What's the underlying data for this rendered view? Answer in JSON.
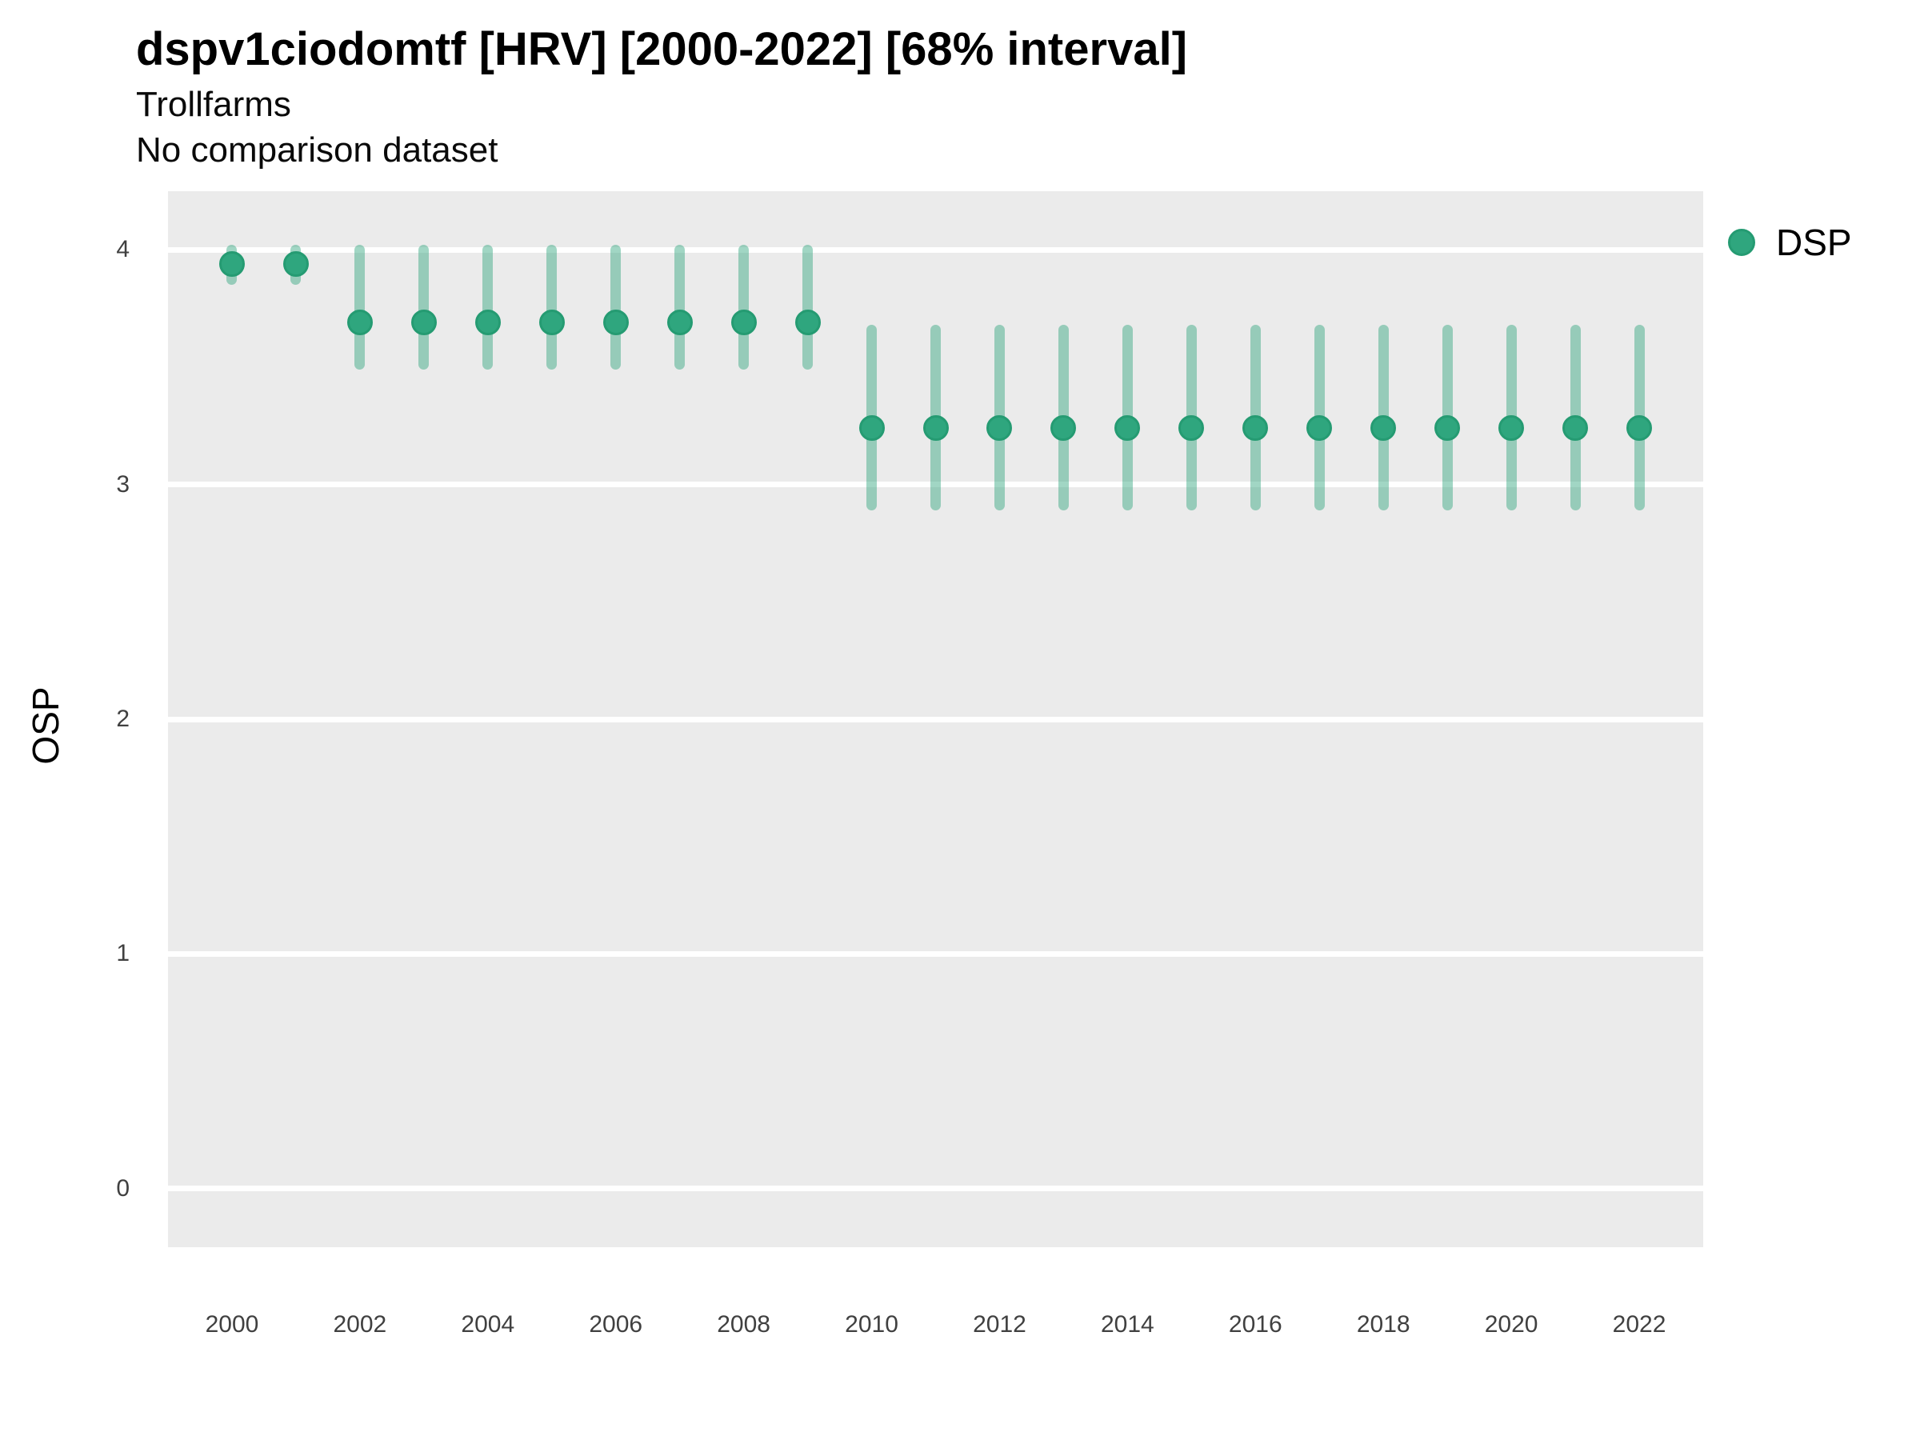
{
  "chart_data": {
    "type": "scatter",
    "title": "dspv1ciodomtf [HRV] [2000-2022] [68% interval]",
    "subtitle": "Trollfarms",
    "subtitle2": "No comparison dataset",
    "xlabel": "",
    "ylabel": "OSP",
    "interval_level": "68%",
    "legend": [
      {
        "label": "DSP",
        "marker": "circle"
      }
    ],
    "legend_position": "right-top",
    "grid": "major-horizontal-only",
    "x_domain": [
      1999,
      2023
    ],
    "y_domain": [
      -0.25,
      4.25
    ],
    "x_ticks": [
      2000,
      2002,
      2004,
      2006,
      2008,
      2010,
      2012,
      2014,
      2016,
      2018,
      2020,
      2022
    ],
    "y_ticks": [
      0,
      1,
      2,
      3,
      4
    ],
    "series": [
      {
        "name": "DSP",
        "points": [
          {
            "year": 2000,
            "y": 3.94,
            "lo": 3.87,
            "hi": 4.0
          },
          {
            "year": 2001,
            "y": 3.94,
            "lo": 3.87,
            "hi": 4.0
          },
          {
            "year": 2002,
            "y": 3.69,
            "lo": 3.51,
            "hi": 4.0
          },
          {
            "year": 2003,
            "y": 3.69,
            "lo": 3.51,
            "hi": 4.0
          },
          {
            "year": 2004,
            "y": 3.69,
            "lo": 3.51,
            "hi": 4.0
          },
          {
            "year": 2005,
            "y": 3.69,
            "lo": 3.51,
            "hi": 4.0
          },
          {
            "year": 2006,
            "y": 3.69,
            "lo": 3.51,
            "hi": 4.0
          },
          {
            "year": 2007,
            "y": 3.69,
            "lo": 3.51,
            "hi": 4.0
          },
          {
            "year": 2008,
            "y": 3.69,
            "lo": 3.51,
            "hi": 4.0
          },
          {
            "year": 2009,
            "y": 3.69,
            "lo": 3.51,
            "hi": 4.0
          },
          {
            "year": 2010,
            "y": 3.24,
            "lo": 2.91,
            "hi": 3.66
          },
          {
            "year": 2011,
            "y": 3.24,
            "lo": 2.91,
            "hi": 3.66
          },
          {
            "year": 2012,
            "y": 3.24,
            "lo": 2.91,
            "hi": 3.66
          },
          {
            "year": 2013,
            "y": 3.24,
            "lo": 2.91,
            "hi": 3.66
          },
          {
            "year": 2014,
            "y": 3.24,
            "lo": 2.91,
            "hi": 3.66
          },
          {
            "year": 2015,
            "y": 3.24,
            "lo": 2.91,
            "hi": 3.66
          },
          {
            "year": 2016,
            "y": 3.24,
            "lo": 2.91,
            "hi": 3.66
          },
          {
            "year": 2017,
            "y": 3.24,
            "lo": 2.91,
            "hi": 3.66
          },
          {
            "year": 2018,
            "y": 3.24,
            "lo": 2.91,
            "hi": 3.66
          },
          {
            "year": 2019,
            "y": 3.24,
            "lo": 2.91,
            "hi": 3.66
          },
          {
            "year": 2020,
            "y": 3.24,
            "lo": 2.91,
            "hi": 3.66
          },
          {
            "year": 2021,
            "y": 3.24,
            "lo": 2.91,
            "hi": 3.66
          },
          {
            "year": 2022,
            "y": 3.24,
            "lo": 2.91,
            "hi": 3.66
          }
        ]
      }
    ],
    "colors": {
      "point_fill": "#2fa67e",
      "point_border": "#259b72",
      "interval_bar": "#2ea57d",
      "interval_alpha": 0.45,
      "panel_bg": "#ebebeb",
      "gridline": "#ffffff",
      "title_text": "#000000",
      "tick_text": "#404040"
    }
  }
}
